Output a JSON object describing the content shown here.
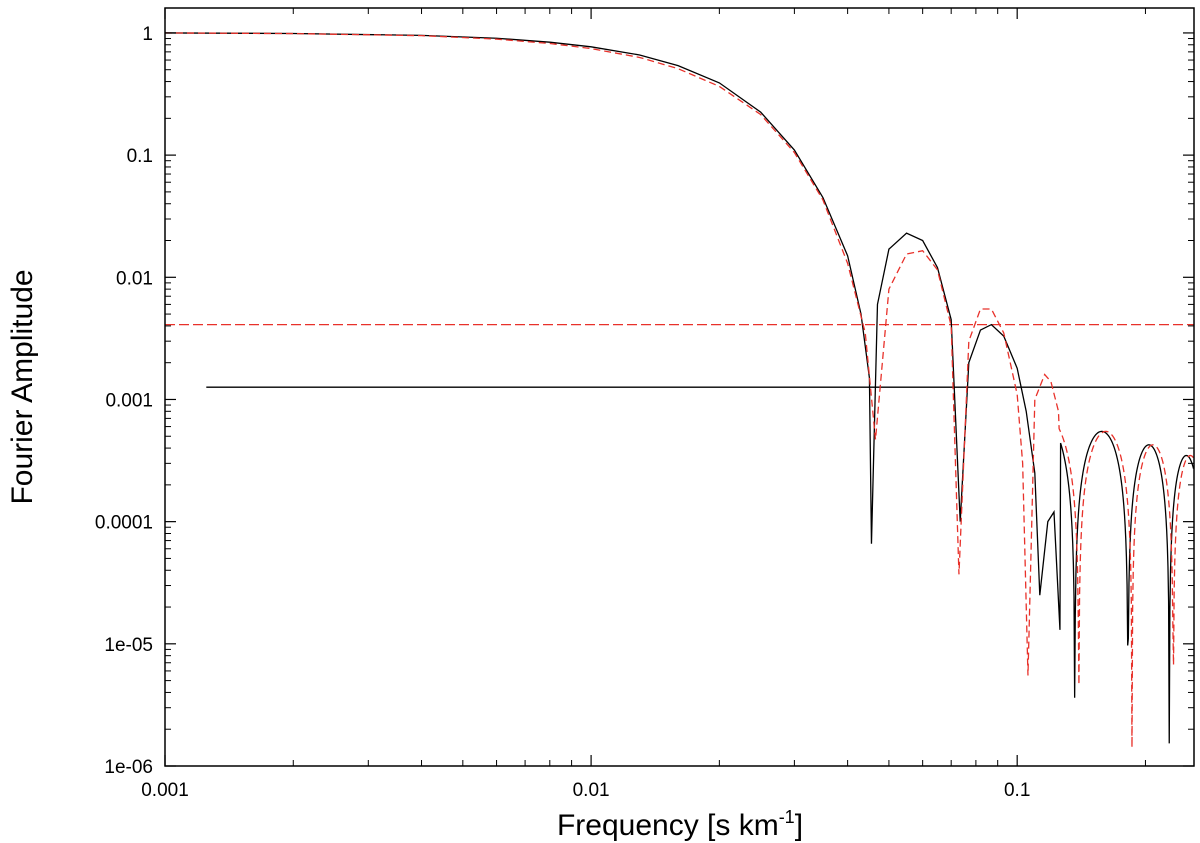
{
  "chart_data": {
    "type": "line",
    "xlabel_main": "Frequency [s km",
    "xlabel_sup": "-1",
    "xlabel_end": "]",
    "ylabel": "Fourier Amplitude",
    "x_scale": "log",
    "y_scale": "log",
    "xlim": [
      0.001,
      0.26
    ],
    "ylim": [
      1e-06,
      1.6
    ],
    "x_ticks": [
      {
        "value": 0.001,
        "label": "0.001"
      },
      {
        "value": 0.01,
        "label": "0.01"
      },
      {
        "value": 0.1,
        "label": "0.1"
      }
    ],
    "y_ticks": [
      {
        "value": 1,
        "label": "1"
      },
      {
        "value": 0.1,
        "label": "0.1"
      },
      {
        "value": 0.01,
        "label": "0.01"
      },
      {
        "value": 0.001,
        "label": "0.001"
      },
      {
        "value": 0.0001,
        "label": "0.0001"
      },
      {
        "value": 1e-05,
        "label": "1e-05"
      },
      {
        "value": 1e-06,
        "label": "1e-06"
      }
    ],
    "grid": false,
    "legend": "none",
    "series": [
      {
        "color": "#000000",
        "style": "solid",
        "kernel_first_zero_frequency": 0.0455,
        "points": [
          [
            0.001,
            1.0
          ],
          [
            0.002,
            0.99
          ],
          [
            0.004,
            0.955
          ],
          [
            0.006,
            0.905
          ],
          [
            0.008,
            0.84
          ],
          [
            0.01,
            0.77
          ],
          [
            0.013,
            0.66
          ],
          [
            0.016,
            0.54
          ],
          [
            0.02,
            0.39
          ],
          [
            0.025,
            0.225
          ],
          [
            0.03,
            0.11
          ],
          [
            0.035,
            0.045
          ],
          [
            0.04,
            0.015
          ],
          [
            0.043,
            0.005
          ],
          [
            0.045,
            0.0015
          ],
          [
            0.0455,
            6.6e-05
          ],
          [
            0.047,
            0.006
          ],
          [
            0.05,
            0.017
          ],
          [
            0.055,
            0.023
          ],
          [
            0.06,
            0.02
          ],
          [
            0.065,
            0.012
          ],
          [
            0.07,
            0.0045
          ],
          [
            0.0735,
            0.0001
          ],
          [
            0.077,
            0.002
          ],
          [
            0.082,
            0.0037
          ],
          [
            0.087,
            0.0041
          ],
          [
            0.093,
            0.0033
          ],
          [
            0.1,
            0.0018
          ],
          [
            0.105,
            0.0008
          ],
          [
            0.11,
            0.00025
          ],
          [
            0.113,
            2.5e-05
          ],
          [
            0.118,
            0.0001
          ],
          [
            0.122,
            0.00012
          ],
          [
            0.126,
            1.3e-05
          ]
        ]
      },
      {
        "color": "#e8312a",
        "style": "dashed",
        "kernel_first_zero_frequency": 0.0465,
        "points": [
          [
            0.001,
            1.0
          ],
          [
            0.002,
            0.988
          ],
          [
            0.004,
            0.95
          ],
          [
            0.006,
            0.89
          ],
          [
            0.008,
            0.82
          ],
          [
            0.01,
            0.745
          ],
          [
            0.013,
            0.63
          ],
          [
            0.016,
            0.51
          ],
          [
            0.02,
            0.365
          ],
          [
            0.025,
            0.215
          ],
          [
            0.03,
            0.105
          ],
          [
            0.035,
            0.043
          ],
          [
            0.04,
            0.013
          ],
          [
            0.044,
            0.0035
          ],
          [
            0.0465,
            0.00047
          ],
          [
            0.05,
            0.008
          ],
          [
            0.055,
            0.0155
          ],
          [
            0.06,
            0.0165
          ],
          [
            0.065,
            0.0115
          ],
          [
            0.07,
            0.004
          ],
          [
            0.073,
            3.7e-05
          ],
          [
            0.077,
            0.003
          ],
          [
            0.082,
            0.0055
          ],
          [
            0.087,
            0.0055
          ],
          [
            0.093,
            0.0035
          ],
          [
            0.1,
            0.0011
          ],
          [
            0.103,
            0.0003
          ],
          [
            0.106,
            5.5e-06
          ],
          [
            0.11,
            0.001
          ],
          [
            0.116,
            0.0016
          ],
          [
            0.12,
            0.0014
          ],
          [
            0.125,
            0.0008
          ]
        ]
      }
    ],
    "horizontal_lines": [
      {
        "y": 0.0041,
        "color": "#e8312a",
        "style": "dashed",
        "x_from": 0.001,
        "x_to": 0.26
      },
      {
        "y": 0.00126,
        "color": "#000000",
        "style": "solid",
        "x_from": 0.00125,
        "x_to": 0.26
      }
    ]
  }
}
